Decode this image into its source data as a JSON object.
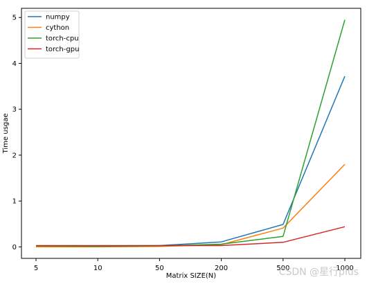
{
  "chart_data": {
    "type": "line",
    "categories": [
      "5",
      "10",
      "50",
      "200",
      "500",
      "1000"
    ],
    "xlabel": "Matrix SIZE(N)",
    "ylabel": "Time usgae",
    "ylim": [
      -0.25,
      5.2
    ],
    "yticks": [
      0,
      1,
      2,
      3,
      4,
      5
    ],
    "grid": false,
    "legend_position": "top-left",
    "series": [
      {
        "name": "numpy",
        "color": "#1f77b4",
        "values": [
          0.02,
          0.02,
          0.03,
          0.11,
          0.49,
          3.72
        ]
      },
      {
        "name": "cython",
        "color": "#ff7f0e",
        "values": [
          0.0,
          0.0,
          0.01,
          0.05,
          0.41,
          1.8
        ]
      },
      {
        "name": "torch-cpu",
        "color": "#2ca02c",
        "values": [
          0.02,
          0.01,
          0.02,
          0.06,
          0.23,
          4.95
        ]
      },
      {
        "name": "torch-gpu",
        "color": "#d62728",
        "values": [
          0.03,
          0.03,
          0.03,
          0.03,
          0.1,
          0.44
        ]
      }
    ]
  },
  "watermark": "CSDN @星行plus"
}
